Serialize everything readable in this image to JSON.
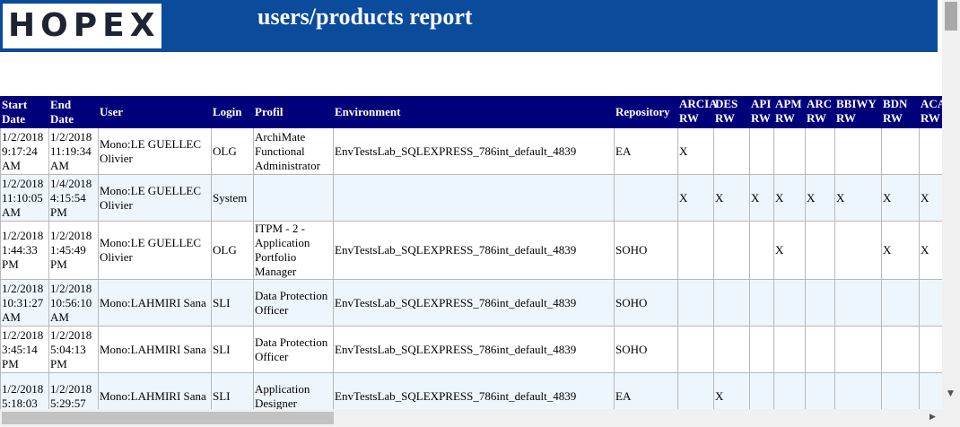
{
  "header": {
    "logo": "HOPEX",
    "title": "users/products report"
  },
  "table": {
    "columns": [
      "Start Date",
      "End Date",
      "User",
      "Login",
      "Profil",
      "Environment",
      "Repository"
    ],
    "products": [
      {
        "name": "ARCIA",
        "access": "RW"
      },
      {
        "name": "DES",
        "access": "RW"
      },
      {
        "name": "API",
        "access": "RW"
      },
      {
        "name": "APM",
        "access": "RW"
      },
      {
        "name": "ARC",
        "access": "RW"
      },
      {
        "name": "BBIWY",
        "access": "RW"
      },
      {
        "name": "BDN",
        "access": "RW"
      },
      {
        "name": "ACAS",
        "access": "RW"
      }
    ],
    "rows": [
      {
        "cells": [
          "1/2/2018 9:17:24 AM",
          "1/2/2018 11:19:34 AM",
          "Mono:LE GUELLEC Olivier",
          "OLG",
          "ArchiMate Functional Administrator",
          "EnvTestsLab_SQLEXPRESS_786int_default_4839",
          "EA"
        ],
        "flags": [
          "X",
          null,
          null,
          null,
          null,
          null,
          null,
          null
        ]
      },
      {
        "cells": [
          "1/2/2018 11:10:05 AM",
          "1/4/2018 4:15:54 PM",
          "Mono:LE GUELLEC Olivier",
          "System",
          null,
          null,
          null
        ],
        "flags": [
          "X",
          "X",
          "X",
          "X",
          "X",
          "X",
          "X",
          "X"
        ]
      },
      {
        "cells": [
          "1/2/2018 1:44:33 PM",
          "1/2/2018 1:45:49 PM",
          "Mono:LE GUELLEC Olivier",
          "OLG",
          "ITPM - 2 - Application Portfolio Manager",
          "EnvTestsLab_SQLEXPRESS_786int_default_4839",
          "SOHO"
        ],
        "flags": [
          null,
          null,
          null,
          "X",
          null,
          null,
          "X",
          "X"
        ]
      },
      {
        "cells": [
          "1/2/2018 10:31:27 AM",
          "1/2/2018 10:56:10 AM",
          "Mono:LAHMIRI Sana",
          "SLI",
          "Data Protection Officer",
          "EnvTestsLab_SQLEXPRESS_786int_default_4839",
          "SOHO"
        ],
        "flags": [
          null,
          null,
          null,
          null,
          null,
          null,
          null,
          null
        ]
      },
      {
        "cells": [
          "1/2/2018 3:45:14 PM",
          "1/2/2018 5:04:13 PM",
          "Mono:LAHMIRI Sana",
          "SLI",
          "Data Protection Officer",
          "EnvTestsLab_SQLEXPRESS_786int_default_4839",
          "SOHO"
        ],
        "flags": [
          null,
          null,
          null,
          null,
          null,
          null,
          null,
          null
        ]
      },
      {
        "cells": [
          "1/2/2018 5:18:03",
          "1/2/2018 5:29:57",
          "Mono:LAHMIRI Sana",
          "SLI",
          "Application Designer",
          "EnvTestsLab_SQLEXPRESS_786int_default_4839",
          "EA"
        ],
        "flags": [
          null,
          "X",
          null,
          null,
          null,
          null,
          null,
          null
        ]
      }
    ]
  }
}
